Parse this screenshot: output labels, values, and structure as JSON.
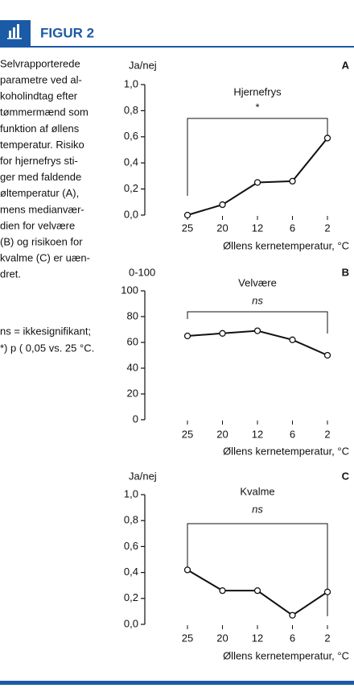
{
  "figure_label": "FIGUR 2",
  "caption": [
    "Selvrapporterede",
    "parametre ved al-",
    "koholindtag efter",
    "tømmermænd som",
    "funktion af øllens",
    "temperatur. Risiko",
    "for hjernefrys sti-",
    "ger med faldende",
    "øltemperatur (A),",
    "mens medianvær-",
    "dien for velvære",
    "(B) og risikoen for",
    "kvalme (C) er uæn-",
    "dret."
  ],
  "note": [
    "ns = ikkesignifikant;",
    "*) p ( 0,05 vs. 25 °C."
  ],
  "chart_data": [
    {
      "type": "line",
      "panel": "A",
      "y_label": "Ja/nej",
      "title": "Hjernefrys",
      "annotation": "*",
      "x_label": "Øllens kernetemperatur, °C",
      "categories": [
        "25",
        "20",
        "12",
        "6",
        "2"
      ],
      "values": [
        0.0,
        0.08,
        0.25,
        0.26,
        0.59
      ],
      "color": "#111111",
      "ylim": [
        0,
        1
      ],
      "yticks": [
        {
          "value": 0,
          "label": "0,0"
        },
        {
          "value": 0.2,
          "label": "0,2"
        },
        {
          "value": 0.4,
          "label": "0,4"
        },
        {
          "value": 0.6,
          "label": "0,6"
        },
        {
          "value": 0.8,
          "label": "0,8"
        },
        {
          "value": 1,
          "label": "1,0"
        }
      ]
    },
    {
      "type": "line",
      "panel": "B",
      "y_label": "0-100",
      "title": "Velvære",
      "annotation": "ns",
      "x_label": "Øllens kernetemperatur, °C",
      "categories": [
        "25",
        "20",
        "12",
        "6",
        "2"
      ],
      "values": [
        65,
        67,
        69,
        62,
        50
      ],
      "color": "#111111",
      "ylim": [
        0,
        100
      ],
      "yticks": [
        0,
        20,
        40,
        60,
        80,
        100
      ]
    },
    {
      "type": "line",
      "panel": "C",
      "y_label": "Ja/nej",
      "title": "Kvalme",
      "annotation": "ns",
      "x_label": "Øllens kernetemperatur, °C",
      "categories": [
        "25",
        "20",
        "12",
        "6",
        "2"
      ],
      "values": [
        0.42,
        0.26,
        0.26,
        0.07,
        0.25
      ],
      "color": "#111111",
      "ylim": [
        0,
        1
      ],
      "yticks": [
        {
          "value": 0,
          "label": "0,0"
        },
        {
          "value": 0.2,
          "label": "0,2"
        },
        {
          "value": 0.4,
          "label": "0,4"
        },
        {
          "value": 0.6,
          "label": "0,6"
        },
        {
          "value": 0.8,
          "label": "0,8"
        },
        {
          "value": 1,
          "label": "1,0"
        }
      ]
    }
  ]
}
